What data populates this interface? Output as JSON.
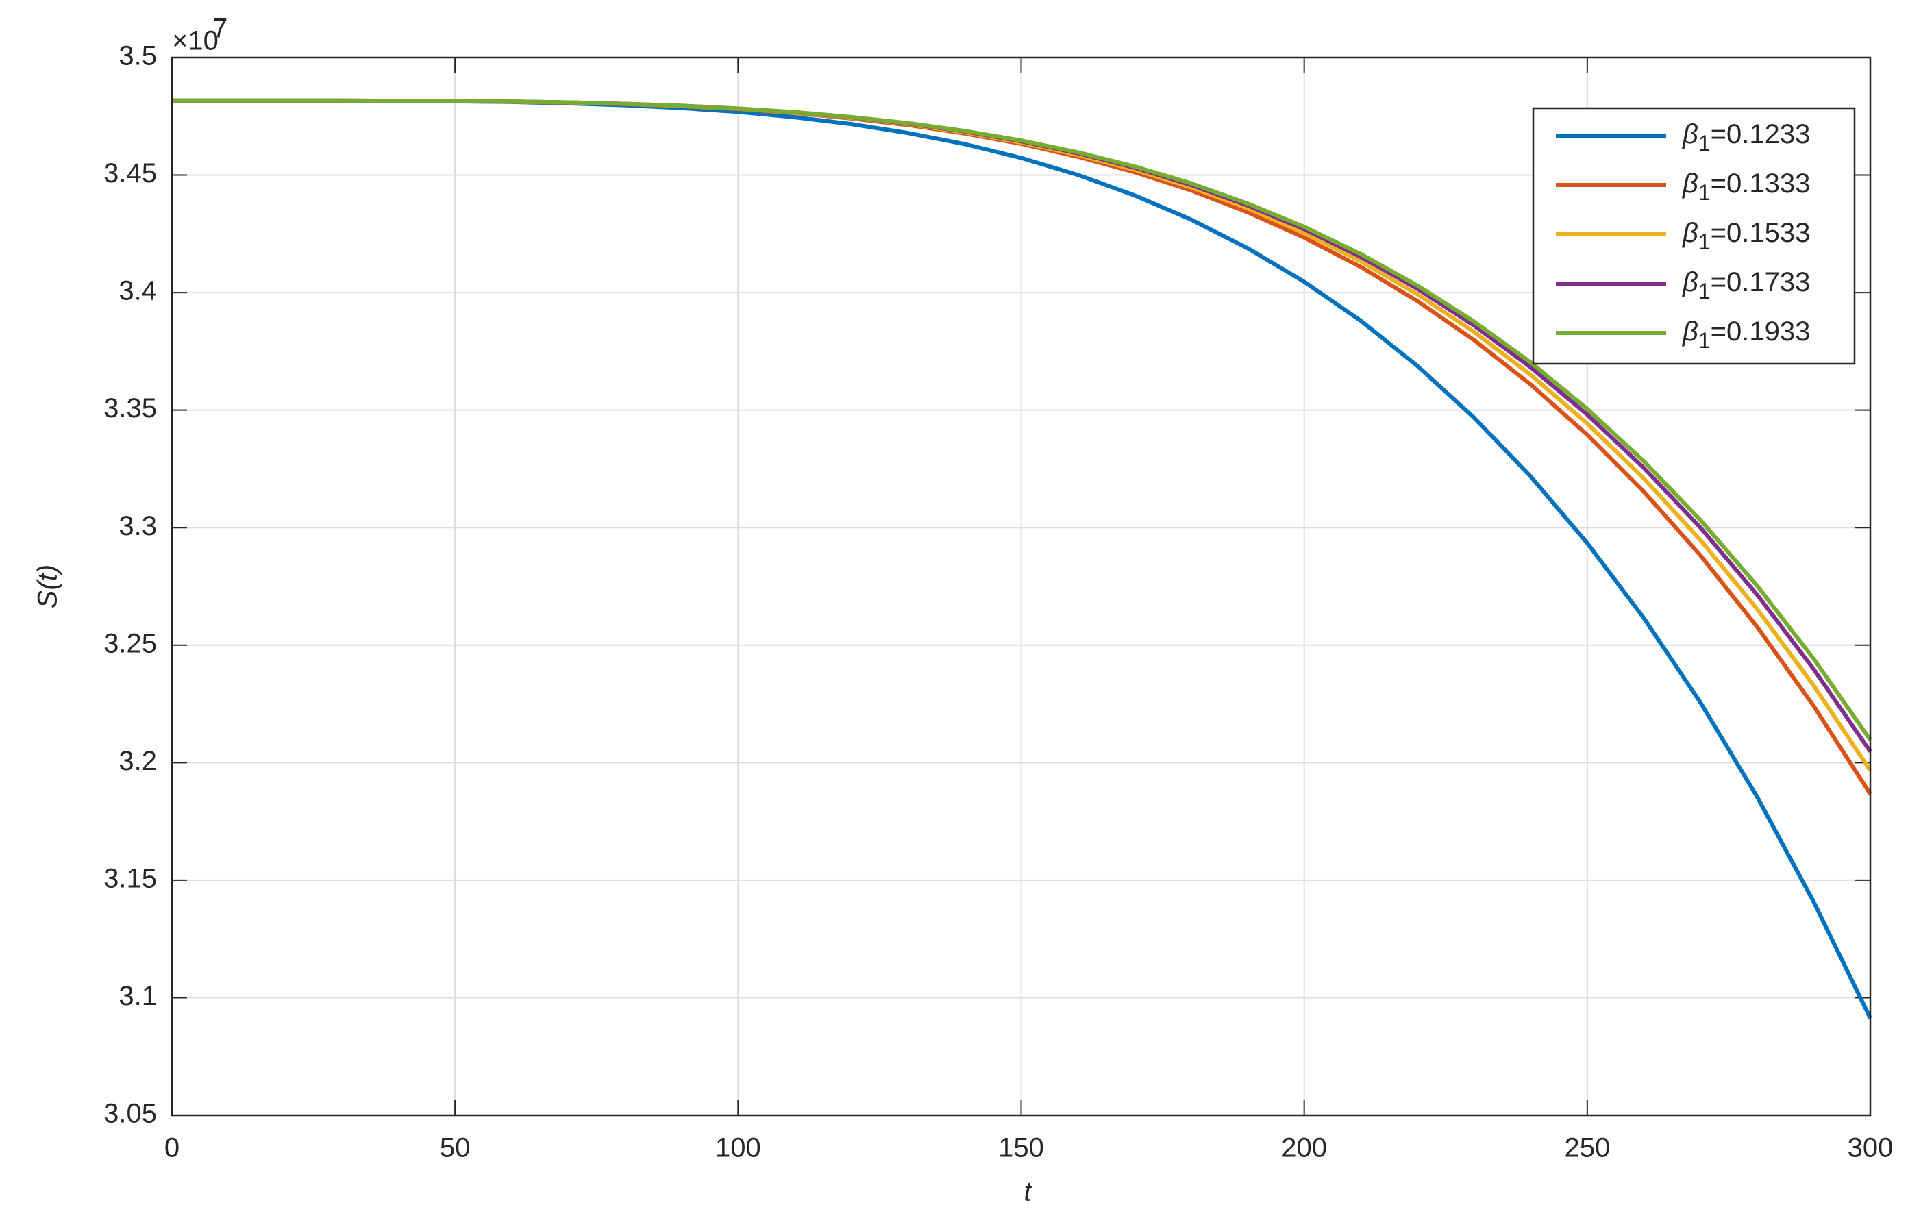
{
  "chart_data": {
    "type": "line",
    "x_label": "t",
    "y_label": "S(t)",
    "y_multiplier": "×10",
    "y_multiplier_power": "7",
    "x": [
      0,
      10,
      20,
      30,
      40,
      50,
      60,
      70,
      80,
      90,
      100,
      110,
      120,
      130,
      140,
      150,
      160,
      170,
      180,
      190,
      200,
      210,
      220,
      230,
      240,
      250,
      260,
      270,
      280,
      290,
      300
    ],
    "series": [
      {
        "name": "β1=0.1233",
        "color": "#0072bd",
        "values": [
          3.4817,
          3.4817,
          3.4817,
          3.4817,
          3.4816,
          3.4814,
          3.4811,
          3.4805,
          3.4797,
          3.4785,
          3.4769,
          3.4746,
          3.4717,
          3.4679,
          3.4632,
          3.4573,
          3.4501,
          3.4414,
          3.4311,
          3.4189,
          3.4046,
          3.388,
          3.3688,
          3.3468,
          3.3218,
          3.2934,
          3.2615,
          3.2256,
          3.1855,
          3.1408,
          3.0913
        ]
      },
      {
        "name": "β1=0.1333",
        "color": "#d95319",
        "values": [
          3.4817,
          3.4817,
          3.4817,
          3.4817,
          3.4816,
          3.4815,
          3.4812,
          3.4808,
          3.4802,
          3.4793,
          3.4781,
          3.4764,
          3.4741,
          3.4713,
          3.4677,
          3.4633,
          3.4578,
          3.4513,
          3.4435,
          3.4342,
          3.4234,
          3.4109,
          3.3964,
          3.3798,
          3.3609,
          3.3395,
          3.3153,
          3.2882,
          3.2578,
          3.2241,
          3.1867
        ]
      },
      {
        "name": "β1=0.1533",
        "color": "#edb120",
        "values": [
          3.4817,
          3.4817,
          3.4817,
          3.4817,
          3.4816,
          3.4815,
          3.4812,
          3.4809,
          3.4803,
          3.4794,
          3.4782,
          3.4765,
          3.4744,
          3.4717,
          3.4682,
          3.4639,
          3.4586,
          3.4523,
          3.4448,
          3.4359,
          3.4254,
          3.4133,
          3.3993,
          3.3833,
          3.365,
          3.3443,
          3.3209,
          3.2947,
          3.2654,
          3.2328,
          3.1967
        ]
      },
      {
        "name": "β1=0.1733",
        "color": "#7e2f8e",
        "values": [
          3.4817,
          3.4817,
          3.4817,
          3.4817,
          3.4816,
          3.4815,
          3.4813,
          3.4809,
          3.4803,
          3.4795,
          3.4783,
          3.4767,
          3.4746,
          3.4719,
          3.4686,
          3.4644,
          3.4593,
          3.4532,
          3.4458,
          3.4371,
          3.427,
          3.4152,
          3.4016,
          3.386,
          3.3682,
          3.3481,
          3.3254,
          3.3,
          3.2715,
          3.2398,
          3.2047
        ]
      },
      {
        "name": "β1=0.1933",
        "color": "#77ac30",
        "values": [
          3.4817,
          3.4817,
          3.4817,
          3.4817,
          3.4816,
          3.4815,
          3.4813,
          3.4809,
          3.4803,
          3.4795,
          3.4783,
          3.4768,
          3.4747,
          3.4721,
          3.4688,
          3.4647,
          3.4597,
          3.4537,
          3.4465,
          3.4379,
          3.428,
          3.4164,
          3.403,
          3.3877,
          3.3703,
          3.3505,
          3.3282,
          3.3032,
          3.2753,
          3.2442,
          3.2097
        ]
      }
    ],
    "xlim": [
      0,
      300
    ],
    "xticks": [
      0,
      50,
      100,
      150,
      200,
      250,
      300
    ],
    "ylim": [
      3.05,
      3.5
    ],
    "yticks": [
      3.05,
      3.1,
      3.15,
      3.2,
      3.25,
      3.3,
      3.35,
      3.4,
      3.45,
      3.5
    ],
    "grid": true,
    "legend": "upper right"
  }
}
